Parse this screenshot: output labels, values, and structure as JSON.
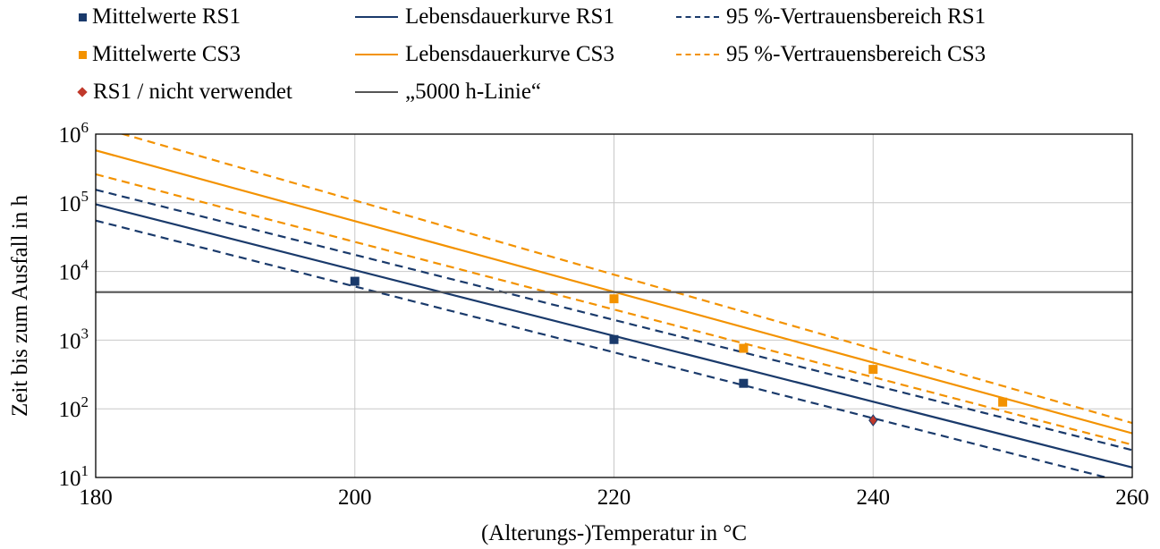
{
  "chart_data": {
    "type": "line",
    "xlabel": "(Alterungs-)Temperatur in °C",
    "ylabel": "Zeit bis zum Ausfall in h",
    "xlim": [
      180,
      260
    ],
    "ylim": [
      10,
      1000000
    ],
    "yscale": "log",
    "grid": true,
    "legend_position": "top",
    "x_ticks": [
      "180",
      "200",
      "220",
      "240",
      "260"
    ],
    "y_ticks": [
      {
        "base": "10",
        "exp": "1",
        "value": 10
      },
      {
        "base": "10",
        "exp": "2",
        "value": 100
      },
      {
        "base": "10",
        "exp": "3",
        "value": 1000
      },
      {
        "base": "10",
        "exp": "4",
        "value": 10000
      },
      {
        "base": "10",
        "exp": "5",
        "value": 100000
      },
      {
        "base": "10",
        "exp": "6",
        "value": 1000000
      }
    ],
    "series": [
      {
        "name": "Mittelwerte RS1",
        "kind": "points",
        "marker": "square",
        "color": "#1a3a6b",
        "points": [
          [
            200,
            7200
          ],
          [
            220,
            1020
          ],
          [
            230,
            235
          ]
        ]
      },
      {
        "name": "Lebensdauerkurve RS1",
        "kind": "line",
        "style": "solid",
        "color": "#1a3a6b",
        "points": [
          [
            180,
            95000
          ],
          [
            260,
            14
          ]
        ]
      },
      {
        "name": "95 %-Vertrauensbereich RS1",
        "kind": "line",
        "style": "dashed",
        "color": "#1a3a6b",
        "points": [
          [
            180,
            155000
          ],
          [
            260,
            25
          ]
        ]
      },
      {
        "name": "95 %-Vertrauensbereich RS1",
        "kind": "line",
        "style": "dashed",
        "color": "#1a3a6b",
        "legend": false,
        "points": [
          [
            180,
            55000
          ],
          [
            260,
            8
          ]
        ]
      },
      {
        "name": "Mittelwerte CS3",
        "kind": "points",
        "marker": "square",
        "color": "#f39200",
        "points": [
          [
            220,
            4000
          ],
          [
            230,
            760
          ],
          [
            240,
            375
          ],
          [
            250,
            125
          ]
        ]
      },
      {
        "name": "Lebensdauerkurve CS3",
        "kind": "line",
        "style": "solid",
        "color": "#f39200",
        "points": [
          [
            180,
            580000
          ],
          [
            260,
            44
          ]
        ]
      },
      {
        "name": "95 %-Vertrauensbereich CS3",
        "kind": "line",
        "style": "dashed",
        "color": "#f39200",
        "points": [
          [
            180,
            1300000
          ],
          [
            260,
            62
          ]
        ]
      },
      {
        "name": "95 %-Vertrauensbereich CS3",
        "kind": "line",
        "style": "dashed",
        "color": "#f39200",
        "legend": false,
        "points": [
          [
            180,
            260000
          ],
          [
            260,
            30
          ]
        ]
      },
      {
        "name": "RS1 / nicht verwendet",
        "kind": "points",
        "marker": "diamond",
        "color": "#c0392b",
        "points": [
          [
            240,
            68
          ]
        ]
      },
      {
        "name": "„5000 h-Linie“",
        "kind": "line",
        "style": "solid",
        "color": "#555555",
        "points": [
          [
            180,
            5000
          ],
          [
            260,
            5000
          ]
        ]
      }
    ]
  },
  "legend": {
    "items": [
      {
        "label": "Mittelwerte RS1",
        "symbol": "square",
        "color": "#1a3a6b"
      },
      {
        "label": "Lebensdauerkurve RS1",
        "symbol": "line",
        "color": "#1a3a6b"
      },
      {
        "label": "95 %-Vertrauensbereich RS1",
        "symbol": "dashed",
        "color": "#1a3a6b"
      },
      {
        "label": "Mittelwerte CS3",
        "symbol": "square",
        "color": "#f39200"
      },
      {
        "label": "Lebensdauerkurve CS3",
        "symbol": "line",
        "color": "#f39200"
      },
      {
        "label": "95 %-Vertrauensbereich CS3",
        "symbol": "dashed",
        "color": "#f39200"
      },
      {
        "label": "RS1 / nicht verwendet",
        "symbol": "diamond",
        "color": "#c0392b"
      },
      {
        "label": "„5000 h-Linie“",
        "symbol": "line",
        "color": "#555555"
      }
    ]
  }
}
